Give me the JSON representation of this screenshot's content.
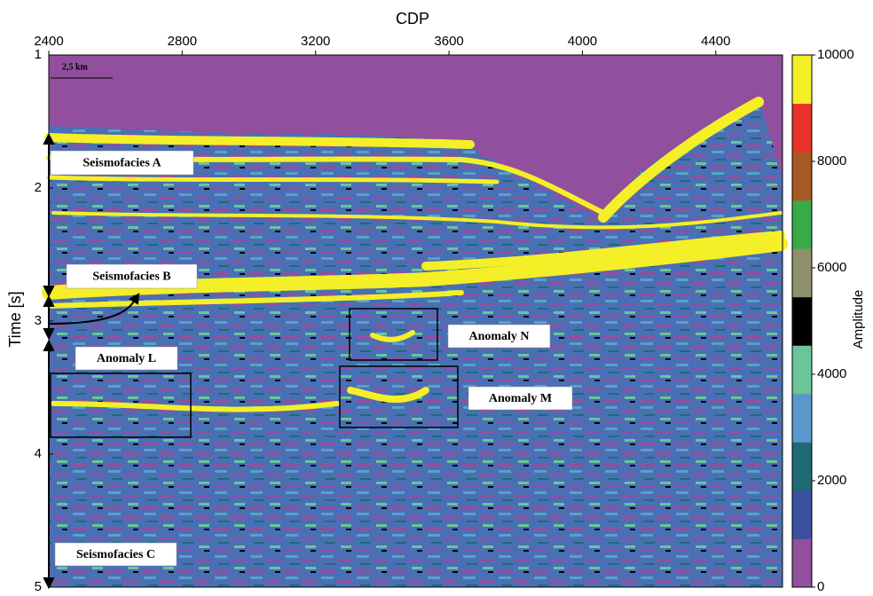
{
  "chart_data": {
    "type": "seismic-section",
    "x_label": "CDP",
    "y_label": "Time [s]",
    "xlim": [
      2400,
      4600
    ],
    "xticks": [
      2400,
      2800,
      3200,
      3600,
      4000,
      4400
    ],
    "ylim": [
      1,
      5
    ],
    "yticks": [
      1,
      2,
      3,
      4,
      5
    ],
    "scale_label": "2,5 km",
    "colorbar": {
      "label": "Amplitude",
      "lim": [
        0,
        10000
      ],
      "ticks": [
        0,
        2000,
        4000,
        6000,
        8000,
        10000
      ],
      "colors": [
        "#924f9e",
        "#3c4fa0",
        "#1f6b73",
        "#5a97cc",
        "#6cc49a",
        "#000000",
        "#8e8f6c",
        "#3aaa48",
        "#a85a24",
        "#e7332a",
        "#f4ef27"
      ]
    },
    "annotations": [
      "Seismofacies A",
      "Seismofacies B",
      "Seismofacies C",
      "Anomaly L",
      "Anomaly M",
      "Anomaly N"
    ]
  }
}
